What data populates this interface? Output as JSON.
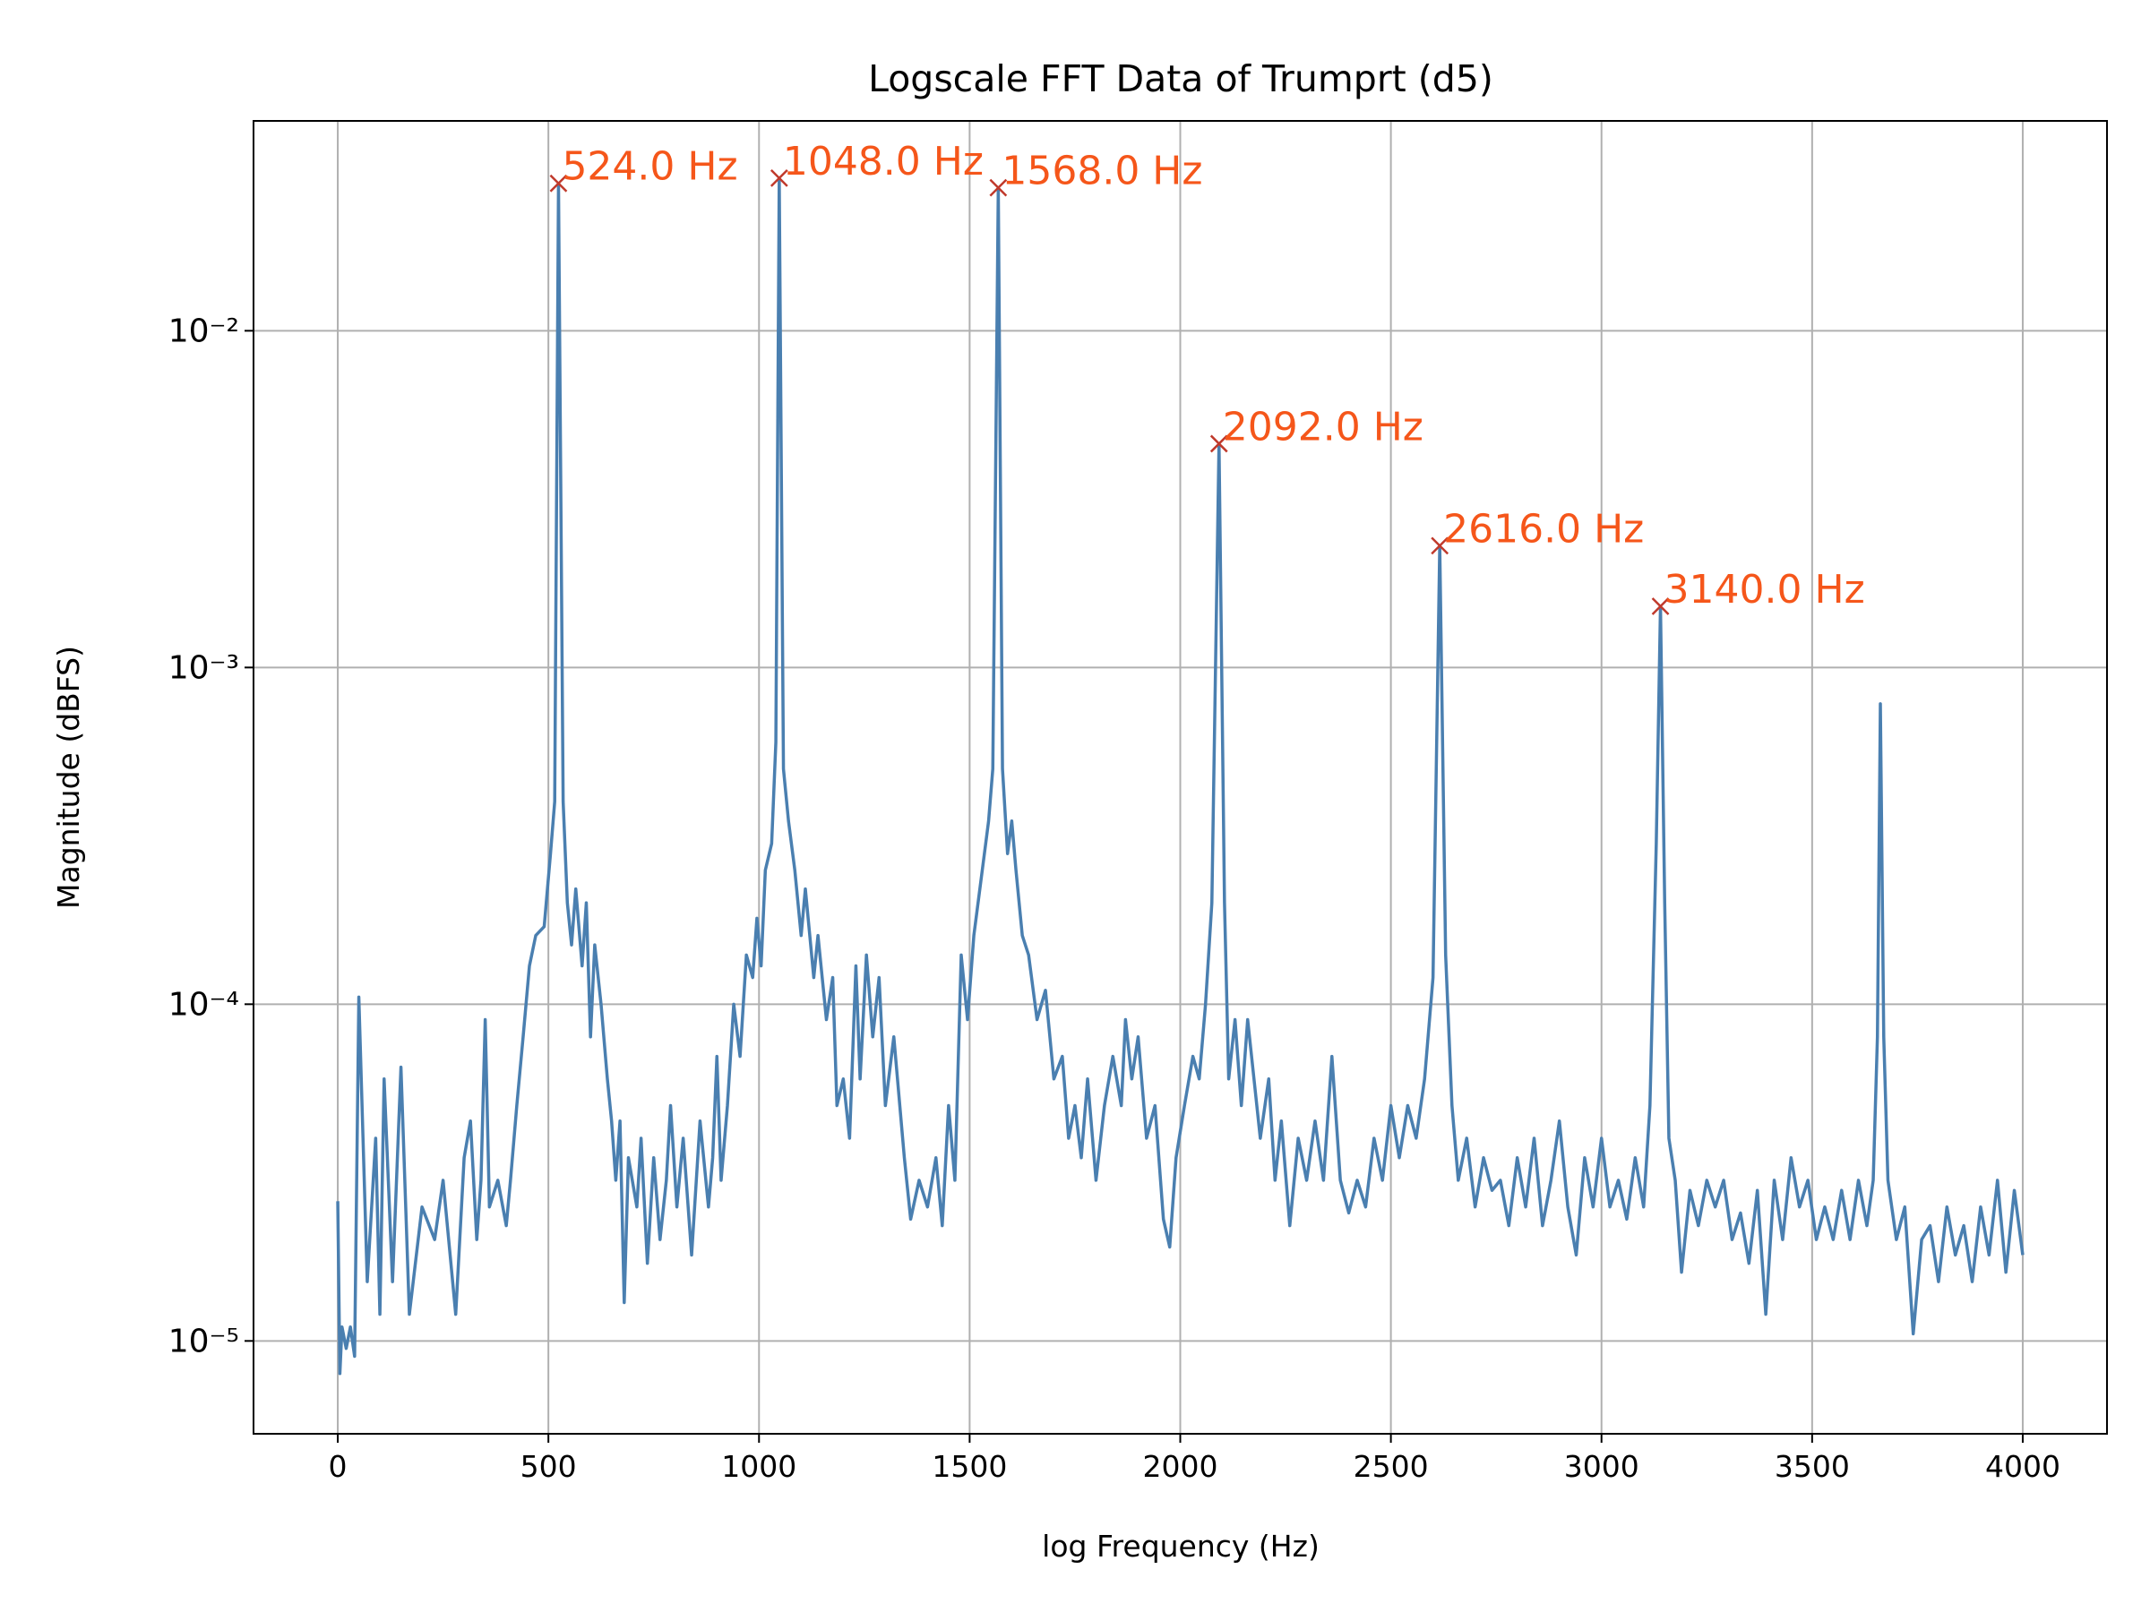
{
  "chart_data": {
    "type": "line",
    "title": "Logscale FFT Data of Trumprt (d5)",
    "xlabel": "log Frequency (Hz)",
    "ylabel": "Magnitude (dBFS)",
    "color": "#4a7fb0",
    "yscale": "log",
    "grid": true,
    "xlim": [
      -200,
      4200
    ],
    "xticks": [
      0,
      500,
      1000,
      1500,
      2000,
      2500,
      3000,
      3500,
      4000
    ],
    "ylim": [
      5.3e-06,
      0.042
    ],
    "yticks": [
      {
        "value": 1e-05,
        "label": "10⁻⁵"
      },
      {
        "value": 0.0001,
        "label": "10⁻⁴"
      },
      {
        "value": 0.001,
        "label": "10⁻³"
      },
      {
        "value": 0.01,
        "label": "10⁻²"
      }
    ],
    "x": [
      0,
      5,
      10,
      20,
      30,
      40,
      50,
      70,
      90,
      100,
      110,
      130,
      150,
      170,
      200,
      230,
      250,
      280,
      300,
      315,
      330,
      340,
      350,
      360,
      380,
      400,
      410,
      425,
      440,
      455,
      470,
      490,
      505,
      515,
      524,
      535,
      545,
      555,
      565,
      580,
      590,
      600,
      610,
      625,
      640,
      650,
      660,
      670,
      680,
      690,
      710,
      720,
      735,
      750,
      765,
      780,
      790,
      805,
      820,
      840,
      860,
      880,
      890,
      900,
      910,
      925,
      940,
      955,
      970,
      985,
      995,
      1005,
      1015,
      1030,
      1040,
      1048,
      1058,
      1070,
      1085,
      1100,
      1110,
      1130,
      1140,
      1160,
      1175,
      1185,
      1200,
      1215,
      1230,
      1240,
      1255,
      1270,
      1285,
      1300,
      1320,
      1345,
      1360,
      1380,
      1400,
      1420,
      1435,
      1450,
      1465,
      1480,
      1495,
      1510,
      1530,
      1545,
      1555,
      1568,
      1578,
      1590,
      1600,
      1610,
      1625,
      1640,
      1660,
      1680,
      1700,
      1720,
      1735,
      1750,
      1765,
      1780,
      1800,
      1820,
      1840,
      1860,
      1870,
      1885,
      1900,
      1920,
      1940,
      1960,
      1975,
      1990,
      2010,
      2030,
      2045,
      2060,
      2075,
      2092,
      2105,
      2115,
      2130,
      2145,
      2160,
      2175,
      2190,
      2210,
      2225,
      2240,
      2260,
      2280,
      2300,
      2320,
      2340,
      2360,
      2380,
      2400,
      2420,
      2440,
      2460,
      2480,
      2500,
      2520,
      2540,
      2560,
      2580,
      2600,
      2616,
      2630,
      2645,
      2660,
      2680,
      2700,
      2720,
      2740,
      2760,
      2780,
      2800,
      2820,
      2840,
      2860,
      2880,
      2900,
      2920,
      2940,
      2960,
      2980,
      3000,
      3020,
      3040,
      3060,
      3080,
      3100,
      3115,
      3130,
      3140,
      3150,
      3160,
      3175,
      3190,
      3210,
      3230,
      3250,
      3270,
      3290,
      3310,
      3330,
      3350,
      3370,
      3390,
      3410,
      3430,
      3450,
      3470,
      3490,
      3510,
      3530,
      3550,
      3570,
      3590,
      3610,
      3630,
      3645,
      3655,
      3662,
      3670,
      3680,
      3700,
      3720,
      3740,
      3760,
      3780,
      3800,
      3820,
      3840,
      3860,
      3880,
      3900,
      3920,
      3940,
      3960,
      3980,
      4000
    ],
    "values": [
      2.6e-05,
      8e-06,
      1.1e-05,
      9.5e-06,
      1.1e-05,
      9e-06,
      0.000105,
      1.5e-05,
      4e-05,
      1.2e-05,
      6e-05,
      1.5e-05,
      6.5e-05,
      1.2e-05,
      2.5e-05,
      2e-05,
      3e-05,
      1.2e-05,
      3.5e-05,
      4.5e-05,
      2e-05,
      3e-05,
      9e-05,
      2.5e-05,
      3e-05,
      2.2e-05,
      3e-05,
      5e-05,
      8e-05,
      0.00013,
      0.00016,
      0.00017,
      0.00028,
      0.0004,
      0.0274,
      0.0004,
      0.0002,
      0.00015,
      0.00022,
      0.00013,
      0.0002,
      8e-05,
      0.00015,
      0.0001,
      6e-05,
      4.5e-05,
      3e-05,
      4.5e-05,
      1.3e-05,
      3.5e-05,
      2.5e-05,
      4e-05,
      1.7e-05,
      3.5e-05,
      2e-05,
      3e-05,
      5e-05,
      2.5e-05,
      4e-05,
      1.8e-05,
      4.5e-05,
      2.5e-05,
      3.5e-05,
      7e-05,
      3e-05,
      5e-05,
      0.0001,
      7e-05,
      0.00014,
      0.00012,
      0.00018,
      0.00013,
      0.00025,
      0.0003,
      0.0006,
      0.0284,
      0.0005,
      0.00035,
      0.00025,
      0.00016,
      0.00022,
      0.00012,
      0.00016,
      9e-05,
      0.00012,
      5e-05,
      6e-05,
      4e-05,
      0.00013,
      6e-05,
      0.00014,
      8e-05,
      0.00012,
      5e-05,
      8e-05,
      3.5e-05,
      2.3e-05,
      3e-05,
      2.5e-05,
      3.5e-05,
      2.2e-05,
      5e-05,
      3e-05,
      0.00014,
      9e-05,
      0.00016,
      0.00025,
      0.00035,
      0.0005,
      0.0266,
      0.0005,
      0.00028,
      0.00035,
      0.00025,
      0.00016,
      0.00014,
      9e-05,
      0.00011,
      6e-05,
      7e-05,
      4e-05,
      5e-05,
      3.5e-05,
      6e-05,
      3e-05,
      5e-05,
      7e-05,
      5e-05,
      9e-05,
      6e-05,
      8e-05,
      4e-05,
      5e-05,
      2.3e-05,
      1.9e-05,
      3.5e-05,
      5e-05,
      7e-05,
      6e-05,
      0.0001,
      0.0002,
      0.00462,
      0.0002,
      6e-05,
      9e-05,
      5e-05,
      9e-05,
      6e-05,
      4e-05,
      6e-05,
      3e-05,
      4.5e-05,
      2.2e-05,
      4e-05,
      3e-05,
      4.5e-05,
      3e-05,
      7e-05,
      3e-05,
      2.4e-05,
      3e-05,
      2.5e-05,
      4e-05,
      3e-05,
      5e-05,
      3.5e-05,
      5e-05,
      4e-05,
      6e-05,
      0.00012,
      0.0023,
      0.00014,
      5e-05,
      3e-05,
      4e-05,
      2.5e-05,
      3.5e-05,
      2.8e-05,
      3e-05,
      2.2e-05,
      3.5e-05,
      2.5e-05,
      4e-05,
      2.2e-05,
      3e-05,
      4.5e-05,
      2.5e-05,
      1.8e-05,
      3.5e-05,
      2.5e-05,
      4e-05,
      2.5e-05,
      3e-05,
      2.3e-05,
      3.5e-05,
      2.5e-05,
      5e-05,
      0.0003,
      0.00152,
      0.0002,
      4e-05,
      3e-05,
      1.6e-05,
      2.8e-05,
      2.2e-05,
      3e-05,
      2.5e-05,
      3e-05,
      2e-05,
      2.4e-05,
      1.7e-05,
      2.8e-05,
      1.2e-05,
      3e-05,
      2e-05,
      3.5e-05,
      2.5e-05,
      3e-05,
      2e-05,
      2.5e-05,
      2e-05,
      2.8e-05,
      2e-05,
      3e-05,
      2.2e-05,
      3e-05,
      8e-05,
      0.00078,
      8e-05,
      3e-05,
      2e-05,
      2.5e-05,
      1.05e-05,
      2e-05,
      2.2e-05,
      1.5e-05,
      2.5e-05,
      1.8e-05,
      2.2e-05,
      1.5e-05,
      2.5e-05,
      1.8e-05,
      3e-05,
      1.6e-05,
      2.8e-05,
      1.8e-05
    ],
    "peaks": {
      "color": "#c0392b",
      "label_color": "#f5561a",
      "x": [
        524,
        1048,
        1568,
        2092,
        2616,
        3140
      ],
      "values": [
        0.0274,
        0.0284,
        0.0266,
        0.00462,
        0.0023,
        0.00152
      ],
      "labels": [
        "524.0 Hz",
        "1048.0 Hz",
        "1568.0 Hz",
        "2092.0 Hz",
        "2616.0 Hz",
        "3140.0 Hz"
      ]
    }
  }
}
